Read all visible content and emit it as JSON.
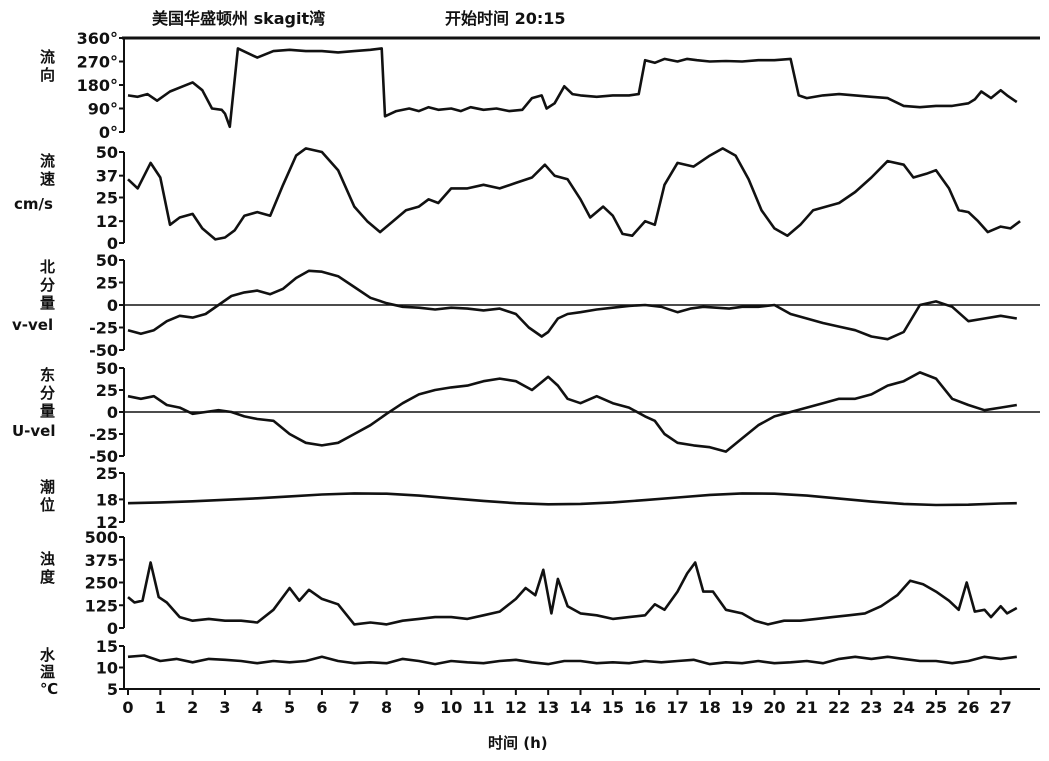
{
  "title": "美国华盛顿州 skagit湾",
  "start_label": "开始时间 20:15",
  "x_label": "时间 (h)",
  "chart_data": {
    "type": "line",
    "x_ticks": [
      "0",
      "1",
      "2",
      "3",
      "4",
      "5",
      "6",
      "7",
      "8",
      "9",
      "10",
      "11",
      "12",
      "13",
      "14",
      "15",
      "16",
      "17",
      "18",
      "19",
      "20",
      "21",
      "22",
      "23",
      "24",
      "25",
      "26",
      "27"
    ],
    "xlim": [
      0,
      28
    ],
    "panels": [
      {
        "key": "direction",
        "label": [
          "流",
          "向"
        ],
        "ylim": [
          0,
          360
        ],
        "ytick_labels": [
          "360°",
          "270°",
          "180°",
          "90°",
          "0°"
        ],
        "zero_line": false,
        "x": [
          0,
          0.3,
          0.6,
          0.9,
          1.3,
          1.7,
          2.0,
          2.3,
          2.6,
          2.9,
          3.0,
          3.15,
          3.4,
          4.0,
          4.5,
          5.0,
          5.5,
          6.0,
          6.5,
          7.0,
          7.5,
          7.85,
          7.95,
          8.3,
          8.7,
          9.0,
          9.3,
          9.6,
          10.0,
          10.3,
          10.6,
          11.0,
          11.4,
          11.8,
          12.2,
          12.5,
          12.8,
          12.95,
          13.2,
          13.5,
          13.75,
          14.0,
          14.5,
          15.0,
          15.5,
          15.8,
          16.0,
          16.3,
          16.6,
          17.0,
          17.3,
          17.6,
          18.0,
          18.5,
          19.0,
          19.5,
          20.0,
          20.5,
          20.75,
          21.0,
          21.5,
          22.0,
          22.5,
          23.0,
          23.5,
          24.0,
          24.5,
          25.0,
          25.5,
          26.0,
          26.2,
          26.4,
          26.7,
          27.0,
          27.2,
          27.5
        ],
        "y": [
          140,
          135,
          145,
          120,
          155,
          175,
          190,
          160,
          90,
          85,
          70,
          20,
          320,
          285,
          310,
          315,
          310,
          310,
          305,
          310,
          315,
          320,
          60,
          80,
          90,
          80,
          95,
          85,
          90,
          80,
          95,
          85,
          90,
          80,
          85,
          130,
          140,
          90,
          110,
          175,
          145,
          140,
          135,
          140,
          140,
          145,
          275,
          265,
          280,
          270,
          280,
          275,
          270,
          272,
          270,
          275,
          275,
          280,
          140,
          130,
          140,
          145,
          140,
          135,
          130,
          100,
          95,
          100,
          100,
          110,
          125,
          155,
          130,
          160,
          140,
          115
        ]
      },
      {
        "key": "speed",
        "label": [
          "流",
          "速",
          "cm/s"
        ],
        "ylim": [
          0,
          50
        ],
        "ytick_values": [
          50,
          37,
          25,
          12,
          0
        ],
        "ytick_labels": [
          "50",
          "37",
          "25",
          "12",
          "0"
        ],
        "zero_line": false,
        "x": [
          0,
          0.3,
          0.7,
          1.0,
          1.3,
          1.6,
          2.0,
          2.3,
          2.7,
          3.0,
          3.3,
          3.6,
          4.0,
          4.4,
          4.8,
          5.2,
          5.5,
          6.0,
          6.5,
          7.0,
          7.4,
          7.8,
          8.2,
          8.6,
          9.0,
          9.3,
          9.6,
          10.0,
          10.5,
          11.0,
          11.5,
          12.0,
          12.5,
          12.9,
          13.2,
          13.6,
          14.0,
          14.3,
          14.7,
          15.0,
          15.3,
          15.6,
          16.0,
          16.3,
          16.6,
          17.0,
          17.5,
          18.0,
          18.4,
          18.8,
          19.2,
          19.6,
          20.0,
          20.4,
          20.8,
          21.2,
          21.6,
          22.0,
          22.5,
          23.0,
          23.5,
          24.0,
          24.3,
          24.7,
          25.0,
          25.4,
          25.7,
          26.0,
          26.3,
          26.6,
          27.0,
          27.3,
          27.6
        ],
        "y": [
          35,
          30,
          44,
          36,
          10,
          14,
          16,
          8,
          2,
          3,
          7,
          15,
          17,
          15,
          32,
          48,
          52,
          50,
          40,
          20,
          12,
          6,
          12,
          18,
          20,
          24,
          22,
          30,
          30,
          32,
          30,
          33,
          36,
          43,
          37,
          35,
          24,
          14,
          20,
          15,
          5,
          4,
          12,
          10,
          32,
          44,
          42,
          48,
          52,
          48,
          35,
          18,
          8,
          4,
          10,
          18,
          20,
          22,
          28,
          36,
          45,
          43,
          36,
          38,
          40,
          30,
          18,
          17,
          12,
          6,
          9,
          8,
          12
        ]
      },
      {
        "key": "v_vel",
        "label": [
          "北",
          "分",
          "量",
          "v-vel"
        ],
        "ylim": [
          -50,
          50
        ],
        "ytick_values": [
          50,
          25,
          0,
          -25,
          -50
        ],
        "ytick_labels": [
          "50",
          "25",
          "0",
          "-25",
          "-50"
        ],
        "zero_line": true,
        "x": [
          0,
          0.4,
          0.8,
          1.2,
          1.6,
          2.0,
          2.4,
          2.8,
          3.2,
          3.6,
          4.0,
          4.4,
          4.8,
          5.2,
          5.6,
          6.0,
          6.5,
          7.0,
          7.5,
          8.0,
          8.5,
          9.0,
          9.5,
          10.0,
          10.5,
          11.0,
          11.5,
          12.0,
          12.4,
          12.8,
          13.0,
          13.3,
          13.6,
          14.0,
          14.5,
          15.0,
          15.5,
          16.0,
          16.5,
          17.0,
          17.4,
          17.8,
          18.2,
          18.6,
          19.0,
          19.5,
          20.0,
          20.5,
          21.0,
          21.5,
          22.0,
          22.5,
          23.0,
          23.5,
          24.0,
          24.5,
          25.0,
          25.5,
          26.0,
          26.5,
          27.0,
          27.5
        ],
        "y": [
          -28,
          -32,
          -28,
          -18,
          -12,
          -14,
          -10,
          0,
          10,
          14,
          16,
          12,
          18,
          30,
          38,
          37,
          32,
          20,
          8,
          2,
          -2,
          -3,
          -5,
          -3,
          -4,
          -6,
          -4,
          -10,
          -25,
          -35,
          -30,
          -15,
          -10,
          -8,
          -5,
          -3,
          -1,
          0,
          -2,
          -8,
          -4,
          -2,
          -3,
          -4,
          -2,
          -2,
          0,
          -10,
          -15,
          -20,
          -24,
          -28,
          -35,
          -38,
          -30,
          0,
          4,
          -2,
          -18,
          -15,
          -12,
          -15
        ]
      },
      {
        "key": "u_vel",
        "label": [
          "东",
          "分",
          "量",
          "U-vel"
        ],
        "ylim": [
          -50,
          50
        ],
        "ytick_values": [
          50,
          25,
          0,
          -25,
          -50
        ],
        "ytick_labels": [
          "50",
          "25",
          "0",
          "-25",
          "-50"
        ],
        "zero_line": true,
        "x": [
          0,
          0.4,
          0.8,
          1.2,
          1.6,
          2.0,
          2.4,
          2.8,
          3.2,
          3.6,
          4.0,
          4.5,
          5.0,
          5.5,
          6.0,
          6.5,
          7.0,
          7.5,
          8.0,
          8.5,
          9.0,
          9.5,
          10.0,
          10.5,
          11.0,
          11.5,
          12.0,
          12.5,
          13.0,
          13.3,
          13.6,
          14.0,
          14.5,
          15.0,
          15.5,
          16.0,
          16.3,
          16.6,
          17.0,
          17.5,
          18.0,
          18.5,
          19.0,
          19.5,
          20.0,
          20.5,
          21.0,
          21.5,
          22.0,
          22.5,
          23.0,
          23.5,
          24.0,
          24.5,
          25.0,
          25.5,
          26.0,
          26.5,
          27.0,
          27.5
        ],
        "y": [
          18,
          15,
          18,
          8,
          5,
          -2,
          0,
          2,
          0,
          -5,
          -8,
          -10,
          -25,
          -35,
          -38,
          -35,
          -25,
          -15,
          -2,
          10,
          20,
          25,
          28,
          30,
          35,
          38,
          35,
          25,
          40,
          30,
          15,
          10,
          18,
          10,
          5,
          -5,
          -10,
          -25,
          -35,
          -38,
          -40,
          -45,
          -30,
          -15,
          -5,
          0,
          5,
          10,
          15,
          15,
          20,
          30,
          35,
          45,
          38,
          15,
          8,
          2,
          5,
          8
        ]
      },
      {
        "key": "tide",
        "label": [
          "潮",
          "位"
        ],
        "ylim": [
          12,
          25
        ],
        "ytick_values": [
          25,
          18,
          12
        ],
        "ytick_labels": [
          "25",
          "18",
          "12"
        ],
        "zero_line": false,
        "x": [
          0,
          1,
          2,
          3,
          4,
          5,
          6,
          7,
          8,
          9,
          10,
          11,
          12,
          13,
          14,
          15,
          16,
          17,
          18,
          19,
          20,
          21,
          22,
          23,
          24,
          25,
          26,
          27,
          27.5
        ],
        "y": [
          17.0,
          17.2,
          17.5,
          17.9,
          18.3,
          18.8,
          19.3,
          19.6,
          19.5,
          19.0,
          18.3,
          17.6,
          17.0,
          16.7,
          16.8,
          17.2,
          17.8,
          18.5,
          19.2,
          19.6,
          19.5,
          19.0,
          18.2,
          17.4,
          16.8,
          16.5,
          16.6,
          16.9,
          17.0
        ]
      },
      {
        "key": "turbidity",
        "label": [
          "浊",
          "度"
        ],
        "ylim": [
          0,
          500
        ],
        "ytick_values": [
          500,
          375,
          250,
          125,
          0
        ],
        "ytick_labels": [
          "500",
          "375",
          "250",
          "125",
          "0"
        ],
        "zero_line": false,
        "x": [
          0,
          0.2,
          0.45,
          0.7,
          0.95,
          1.2,
          1.6,
          2.0,
          2.5,
          3.0,
          3.5,
          4.0,
          4.5,
          5.0,
          5.3,
          5.6,
          6.0,
          6.5,
          7.0,
          7.5,
          8.0,
          8.5,
          9.0,
          9.5,
          10.0,
          10.5,
          11.0,
          11.5,
          12.0,
          12.3,
          12.6,
          12.85,
          13.1,
          13.3,
          13.6,
          14.0,
          14.5,
          15.0,
          15.5,
          16.0,
          16.3,
          16.6,
          17.0,
          17.3,
          17.55,
          17.8,
          18.1,
          18.5,
          19.0,
          19.4,
          19.8,
          20.3,
          20.8,
          21.3,
          21.8,
          22.3,
          22.8,
          23.3,
          23.8,
          24.2,
          24.6,
          25.0,
          25.4,
          25.7,
          25.95,
          26.2,
          26.5,
          26.7,
          27.0,
          27.2,
          27.5
        ],
        "y": [
          170,
          140,
          150,
          360,
          170,
          140,
          60,
          40,
          50,
          40,
          40,
          30,
          100,
          220,
          150,
          210,
          160,
          130,
          20,
          30,
          20,
          40,
          50,
          60,
          60,
          50,
          70,
          90,
          160,
          220,
          180,
          320,
          80,
          270,
          120,
          80,
          70,
          50,
          60,
          70,
          130,
          100,
          200,
          300,
          360,
          200,
          200,
          100,
          80,
          40,
          20,
          40,
          40,
          50,
          60,
          70,
          80,
          120,
          180,
          260,
          240,
          200,
          150,
          100,
          250,
          90,
          100,
          60,
          120,
          80,
          110
        ]
      },
      {
        "key": "temperature",
        "label": [
          "水",
          "温",
          "℃"
        ],
        "ylim": [
          5,
          15
        ],
        "ytick_values": [
          15,
          10,
          5
        ],
        "ytick_labels": [
          "15",
          "10",
          "5"
        ],
        "zero_line": false,
        "x": [
          0,
          0.5,
          1,
          1.5,
          2,
          2.5,
          3,
          3.5,
          4,
          4.5,
          5,
          5.5,
          6,
          6.5,
          7,
          7.5,
          8,
          8.5,
          9,
          9.5,
          10,
          10.5,
          11,
          11.5,
          12,
          12.5,
          13,
          13.5,
          14,
          14.5,
          15,
          15.5,
          16,
          16.5,
          17,
          17.5,
          18,
          18.5,
          19,
          19.5,
          20,
          20.5,
          21,
          21.5,
          22,
          22.5,
          23,
          23.5,
          24,
          24.5,
          25,
          25.5,
          26,
          26.5,
          27,
          27.5
        ],
        "y": [
          12.5,
          12.8,
          11.5,
          12.0,
          11.2,
          12.0,
          11.8,
          11.5,
          11.0,
          11.5,
          11.2,
          11.5,
          12.5,
          11.5,
          11.0,
          11.2,
          11.0,
          12.0,
          11.5,
          10.8,
          11.5,
          11.2,
          11.0,
          11.5,
          11.8,
          11.2,
          10.8,
          11.5,
          11.5,
          11.0,
          11.2,
          11.0,
          11.5,
          11.2,
          11.5,
          11.8,
          10.8,
          11.2,
          11.0,
          11.5,
          11.0,
          11.2,
          11.5,
          11.0,
          12.0,
          12.5,
          12.0,
          12.5,
          12.0,
          11.5,
          11.5,
          11.0,
          11.5,
          12.5,
          12.0,
          12.5
        ]
      }
    ]
  }
}
